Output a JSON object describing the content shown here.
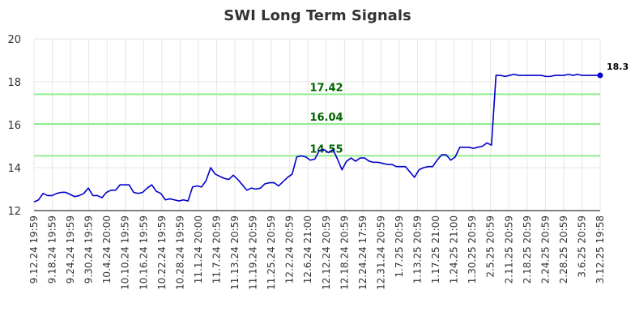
{
  "chart_data": {
    "type": "line",
    "title": "SWI Long Term Signals",
    "xlabel": "",
    "ylabel": "",
    "ylim": [
      12,
      20
    ],
    "yticks": [
      12,
      14,
      16,
      18,
      20
    ],
    "grid": true,
    "x_tick_labels": [
      "9.12.24 19:59",
      "9.18.24 19:59",
      "9.24.24 19:59",
      "9.30.24 19:59",
      "10.4.24 20:00",
      "10.10.24 19:59",
      "10.16.24 19:59",
      "10.22.24 19:59",
      "10.28.24 19:59",
      "11.1.24 20:00",
      "11.7.24 20:59",
      "11.13.24 20:59",
      "11.19.24 20:59",
      "11.25.24 20:59",
      "12.2.24 20:59",
      "12.6.24 21:00",
      "12.12.24 20:59",
      "12.18.24 20:59",
      "12.24.24 17:59",
      "12.31.24 20:59",
      "1.7.25 20:59",
      "1.13.25 20:59",
      "1.17.25 21:00",
      "1.24.25 21:00",
      "1.30.25 20:59",
      "2.5.25 20:59",
      "2.11.25 20:59",
      "2.18.25 20:59",
      "2.24.25 20:59",
      "2.28.25 20:59",
      "3.6.25 20:59",
      "3.12.25 19:58"
    ],
    "series": [
      {
        "color": "#0000cc",
        "values": [
          12.4,
          12.5,
          12.8,
          12.7,
          12.7,
          12.8,
          12.85,
          12.85,
          12.75,
          12.65,
          12.7,
          12.8,
          13.05,
          12.7,
          12.7,
          12.6,
          12.85,
          12.95,
          12.95,
          13.2,
          13.2,
          13.2,
          12.85,
          12.8,
          12.85,
          13.05,
          13.2,
          12.9,
          12.8,
          12.5,
          12.55,
          12.5,
          12.45,
          12.5,
          12.45,
          13.1,
          13.15,
          13.1,
          13.4,
          14.0,
          13.7,
          13.6,
          13.5,
          13.45,
          13.65,
          13.45,
          13.2,
          12.95,
          13.05,
          13.0,
          13.05,
          13.25,
          13.3,
          13.3,
          13.15,
          13.35,
          13.55,
          13.7,
          14.5,
          14.55,
          14.5,
          14.35,
          14.4,
          14.8,
          14.85,
          14.7,
          14.85,
          14.4,
          13.9,
          14.3,
          14.45,
          14.3,
          14.45,
          14.45,
          14.3,
          14.25,
          14.25,
          14.2,
          14.15,
          14.15,
          14.05,
          14.05,
          14.05,
          13.8,
          13.55,
          13.9,
          14.0,
          14.05,
          14.05,
          14.35,
          14.6,
          14.6,
          14.35,
          14.5,
          14.95,
          14.95,
          14.95,
          14.9,
          14.95,
          15.0,
          15.15,
          15.05,
          18.3,
          18.3,
          18.25,
          18.3,
          18.35,
          18.3,
          18.3,
          18.3,
          18.3,
          18.3,
          18.3,
          18.25,
          18.25,
          18.3,
          18.3,
          18.3,
          18.35,
          18.3,
          18.35,
          18.3,
          18.3,
          18.3,
          18.3,
          18.3
        ]
      }
    ],
    "signals": [
      {
        "value": 17.42,
        "label": "17.42",
        "color": "#90ee90"
      },
      {
        "value": 16.04,
        "label": "16.04",
        "color": "#90ee90"
      },
      {
        "value": 14.55,
        "label": "14.55",
        "color": "#90ee90"
      }
    ],
    "last_value": {
      "value": 18.3,
      "label": "18.3"
    }
  }
}
